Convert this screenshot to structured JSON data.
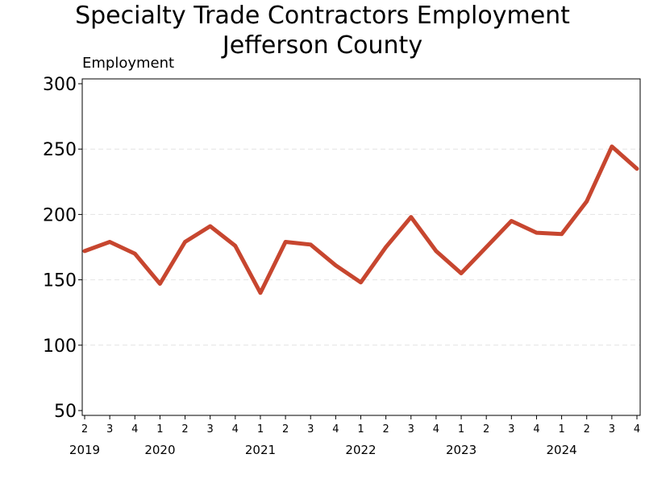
{
  "chart_data": {
    "type": "line",
    "title": "Specialty Trade Contractors Employment",
    "subtitle": "Jefferson County",
    "ylabel": "Employment",
    "xlabel": "",
    "ylim": [
      50,
      300
    ],
    "yticks": [
      50,
      100,
      150,
      200,
      250,
      300
    ],
    "grid": true,
    "categories": [
      "2",
      "3",
      "4",
      "1",
      "2",
      "3",
      "4",
      "1",
      "2",
      "3",
      "4",
      "1",
      "2",
      "3",
      "4",
      "1",
      "2",
      "3",
      "4",
      "1",
      "2",
      "3",
      "4"
    ],
    "years": [
      {
        "label": "2019",
        "index": 0
      },
      {
        "label": "2020",
        "index": 3
      },
      {
        "label": "2021",
        "index": 7
      },
      {
        "label": "2022",
        "index": 11
      },
      {
        "label": "2023",
        "index": 15
      },
      {
        "label": "2024",
        "index": 19
      }
    ],
    "series": [
      {
        "name": "Employment",
        "color": "#c7462f",
        "values": [
          172,
          179,
          170,
          147,
          179,
          191,
          176,
          140,
          179,
          177,
          161,
          148,
          175,
          198,
          172,
          155,
          175,
          195,
          186,
          185,
          210,
          252,
          235
        ]
      }
    ]
  }
}
